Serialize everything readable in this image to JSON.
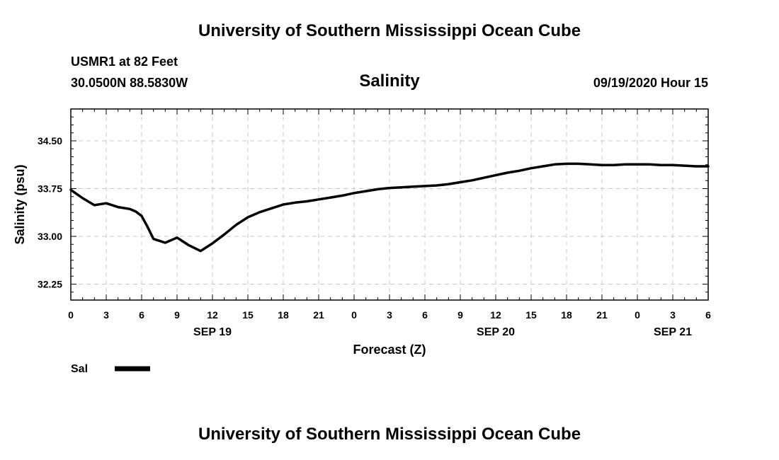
{
  "header": {
    "title": "University of Southern Mississippi Ocean Cube",
    "station": "USMR1 at 82 Feet",
    "coords": "30.0500N 88.5830W",
    "timestamp": "09/19/2020 Hour 15"
  },
  "footer": {
    "title": "University of Southern Mississippi Ocean Cube"
  },
  "chart_data": {
    "type": "line",
    "title": "Salinity",
    "xlabel": "Forecast (Z)",
    "ylabel": "Salinity (psu)",
    "xlim": [
      0,
      54
    ],
    "ylim": [
      32.0,
      35.0
    ],
    "x_unit": "hours from SEP 19 00Z",
    "x_ticks": [
      0,
      3,
      6,
      9,
      12,
      15,
      18,
      21,
      24,
      27,
      30,
      33,
      36,
      39,
      42,
      45,
      48,
      51,
      54
    ],
    "x_tick_labels": [
      "0",
      "3",
      "6",
      "9",
      "12",
      "15",
      "18",
      "21",
      "0",
      "3",
      "6",
      "9",
      "12",
      "15",
      "18",
      "21",
      "0",
      "3",
      "6"
    ],
    "y_ticks": [
      32.25,
      33.0,
      33.75,
      34.5
    ],
    "y_tick_labels": [
      "32.25",
      "33.00",
      "33.75",
      "34.50"
    ],
    "date_labels": [
      {
        "x": 12,
        "label": "SEP 19"
      },
      {
        "x": 36,
        "label": "SEP 20"
      },
      {
        "x": 51,
        "label": "SEP 21"
      }
    ],
    "grid": true,
    "legend_position": "bottom-left",
    "series": [
      {
        "name": "Sal",
        "color": "#000000",
        "x": [
          0,
          1,
          2,
          3,
          4,
          5,
          5.5,
          6,
          6.5,
          7,
          8,
          9,
          10,
          11,
          12,
          13,
          14,
          15,
          16,
          17,
          18,
          19,
          20,
          21,
          22,
          23,
          24,
          25,
          26,
          27,
          28,
          29,
          30,
          31,
          32,
          33,
          34,
          35,
          36,
          37,
          38,
          39,
          40,
          41,
          42,
          43,
          44,
          45,
          46,
          47,
          48,
          49,
          50,
          51,
          52,
          53,
          54
        ],
        "values": [
          33.73,
          33.6,
          33.49,
          33.52,
          33.46,
          33.43,
          33.39,
          33.32,
          33.15,
          32.96,
          32.9,
          32.98,
          32.86,
          32.77,
          32.89,
          33.03,
          33.18,
          33.3,
          33.38,
          33.44,
          33.5,
          33.53,
          33.55,
          33.58,
          33.61,
          33.64,
          33.68,
          33.71,
          33.74,
          33.76,
          33.77,
          33.78,
          33.79,
          33.8,
          33.82,
          33.85,
          33.88,
          33.92,
          33.96,
          34.0,
          34.03,
          34.07,
          34.1,
          34.13,
          34.14,
          34.14,
          34.13,
          34.12,
          34.12,
          34.13,
          34.13,
          34.13,
          34.12,
          34.12,
          34.11,
          34.1,
          34.1
        ]
      }
    ]
  }
}
